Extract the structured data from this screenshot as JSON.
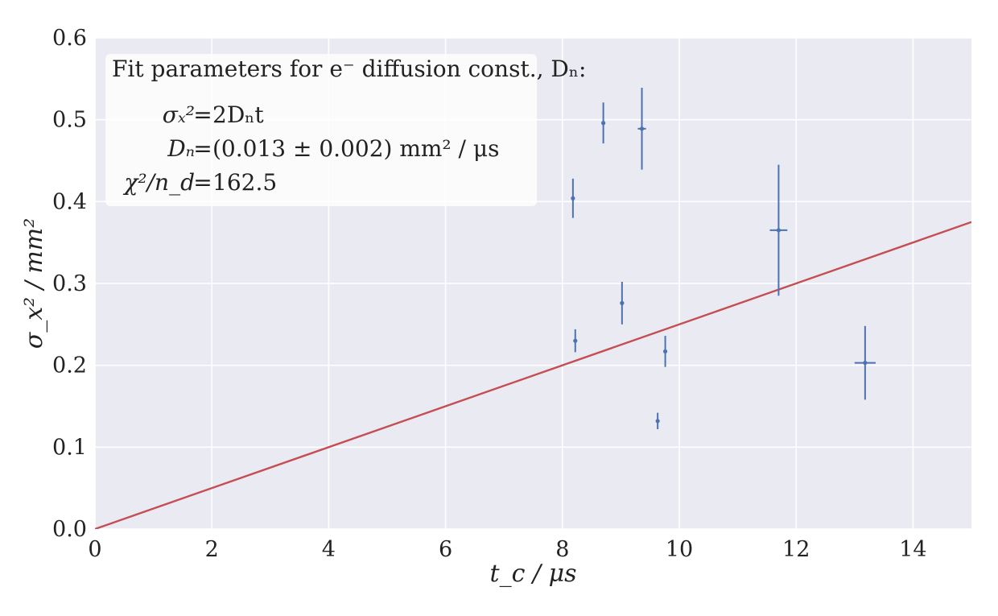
{
  "chart_data": {
    "type": "scatter",
    "title": "",
    "xlabel": "t_c / μs",
    "ylabel": "σ_x² / mm²",
    "xlim": [
      0,
      15
    ],
    "ylim": [
      0,
      0.6
    ],
    "x_ticks": [
      0,
      2,
      4,
      6,
      8,
      10,
      12,
      14
    ],
    "x_tick_labels": [
      "0",
      "2",
      "4",
      "6",
      "8",
      "10",
      "12",
      "14"
    ],
    "y_ticks": [
      0.0,
      0.1,
      0.2,
      0.3,
      0.4,
      0.5,
      0.6
    ],
    "y_tick_labels": [
      "0.0",
      "0.1",
      "0.2",
      "0.3",
      "0.4",
      "0.5",
      "0.6"
    ],
    "grid": true,
    "background_color": "#EAEAF2",
    "grid_color": "#FFFFFF",
    "series": [
      {
        "kind": "errorbar",
        "color": "#4C72B0",
        "points": [
          {
            "x": 8.18,
            "y": 0.404,
            "xerr": 0.02,
            "yerr": 0.024
          },
          {
            "x": 8.22,
            "y": 0.23,
            "xerr": 0.02,
            "yerr": 0.014
          },
          {
            "x": 8.7,
            "y": 0.496,
            "xerr": 0.02,
            "yerr": 0.025
          },
          {
            "x": 9.02,
            "y": 0.276,
            "xerr": 0.03,
            "yerr": 0.026
          },
          {
            "x": 9.36,
            "y": 0.489,
            "xerr": 0.07,
            "yerr": 0.05
          },
          {
            "x": 9.63,
            "y": 0.132,
            "xerr": 0.02,
            "yerr": 0.01
          },
          {
            "x": 9.76,
            "y": 0.217,
            "xerr": 0.02,
            "yerr": 0.019
          },
          {
            "x": 11.7,
            "y": 0.365,
            "xerr": 0.15,
            "yerr": 0.08
          },
          {
            "x": 13.18,
            "y": 0.203,
            "xerr": 0.18,
            "yerr": 0.045
          }
        ]
      },
      {
        "kind": "line",
        "color": "#C44E52",
        "slope": 0.025,
        "x": [
          0,
          15
        ],
        "y": [
          0,
          0.375
        ]
      }
    ],
    "legend": {
      "placement": "top-left",
      "lines": [
        "Fit parameters for e⁻ diffusion const., Dₙ:",
        "σₓ² = 2Dₙt",
        "Dₙ = (0.013 ± 0.002) mm² / μs",
        "χ²/n_d = 162.5"
      ]
    }
  }
}
